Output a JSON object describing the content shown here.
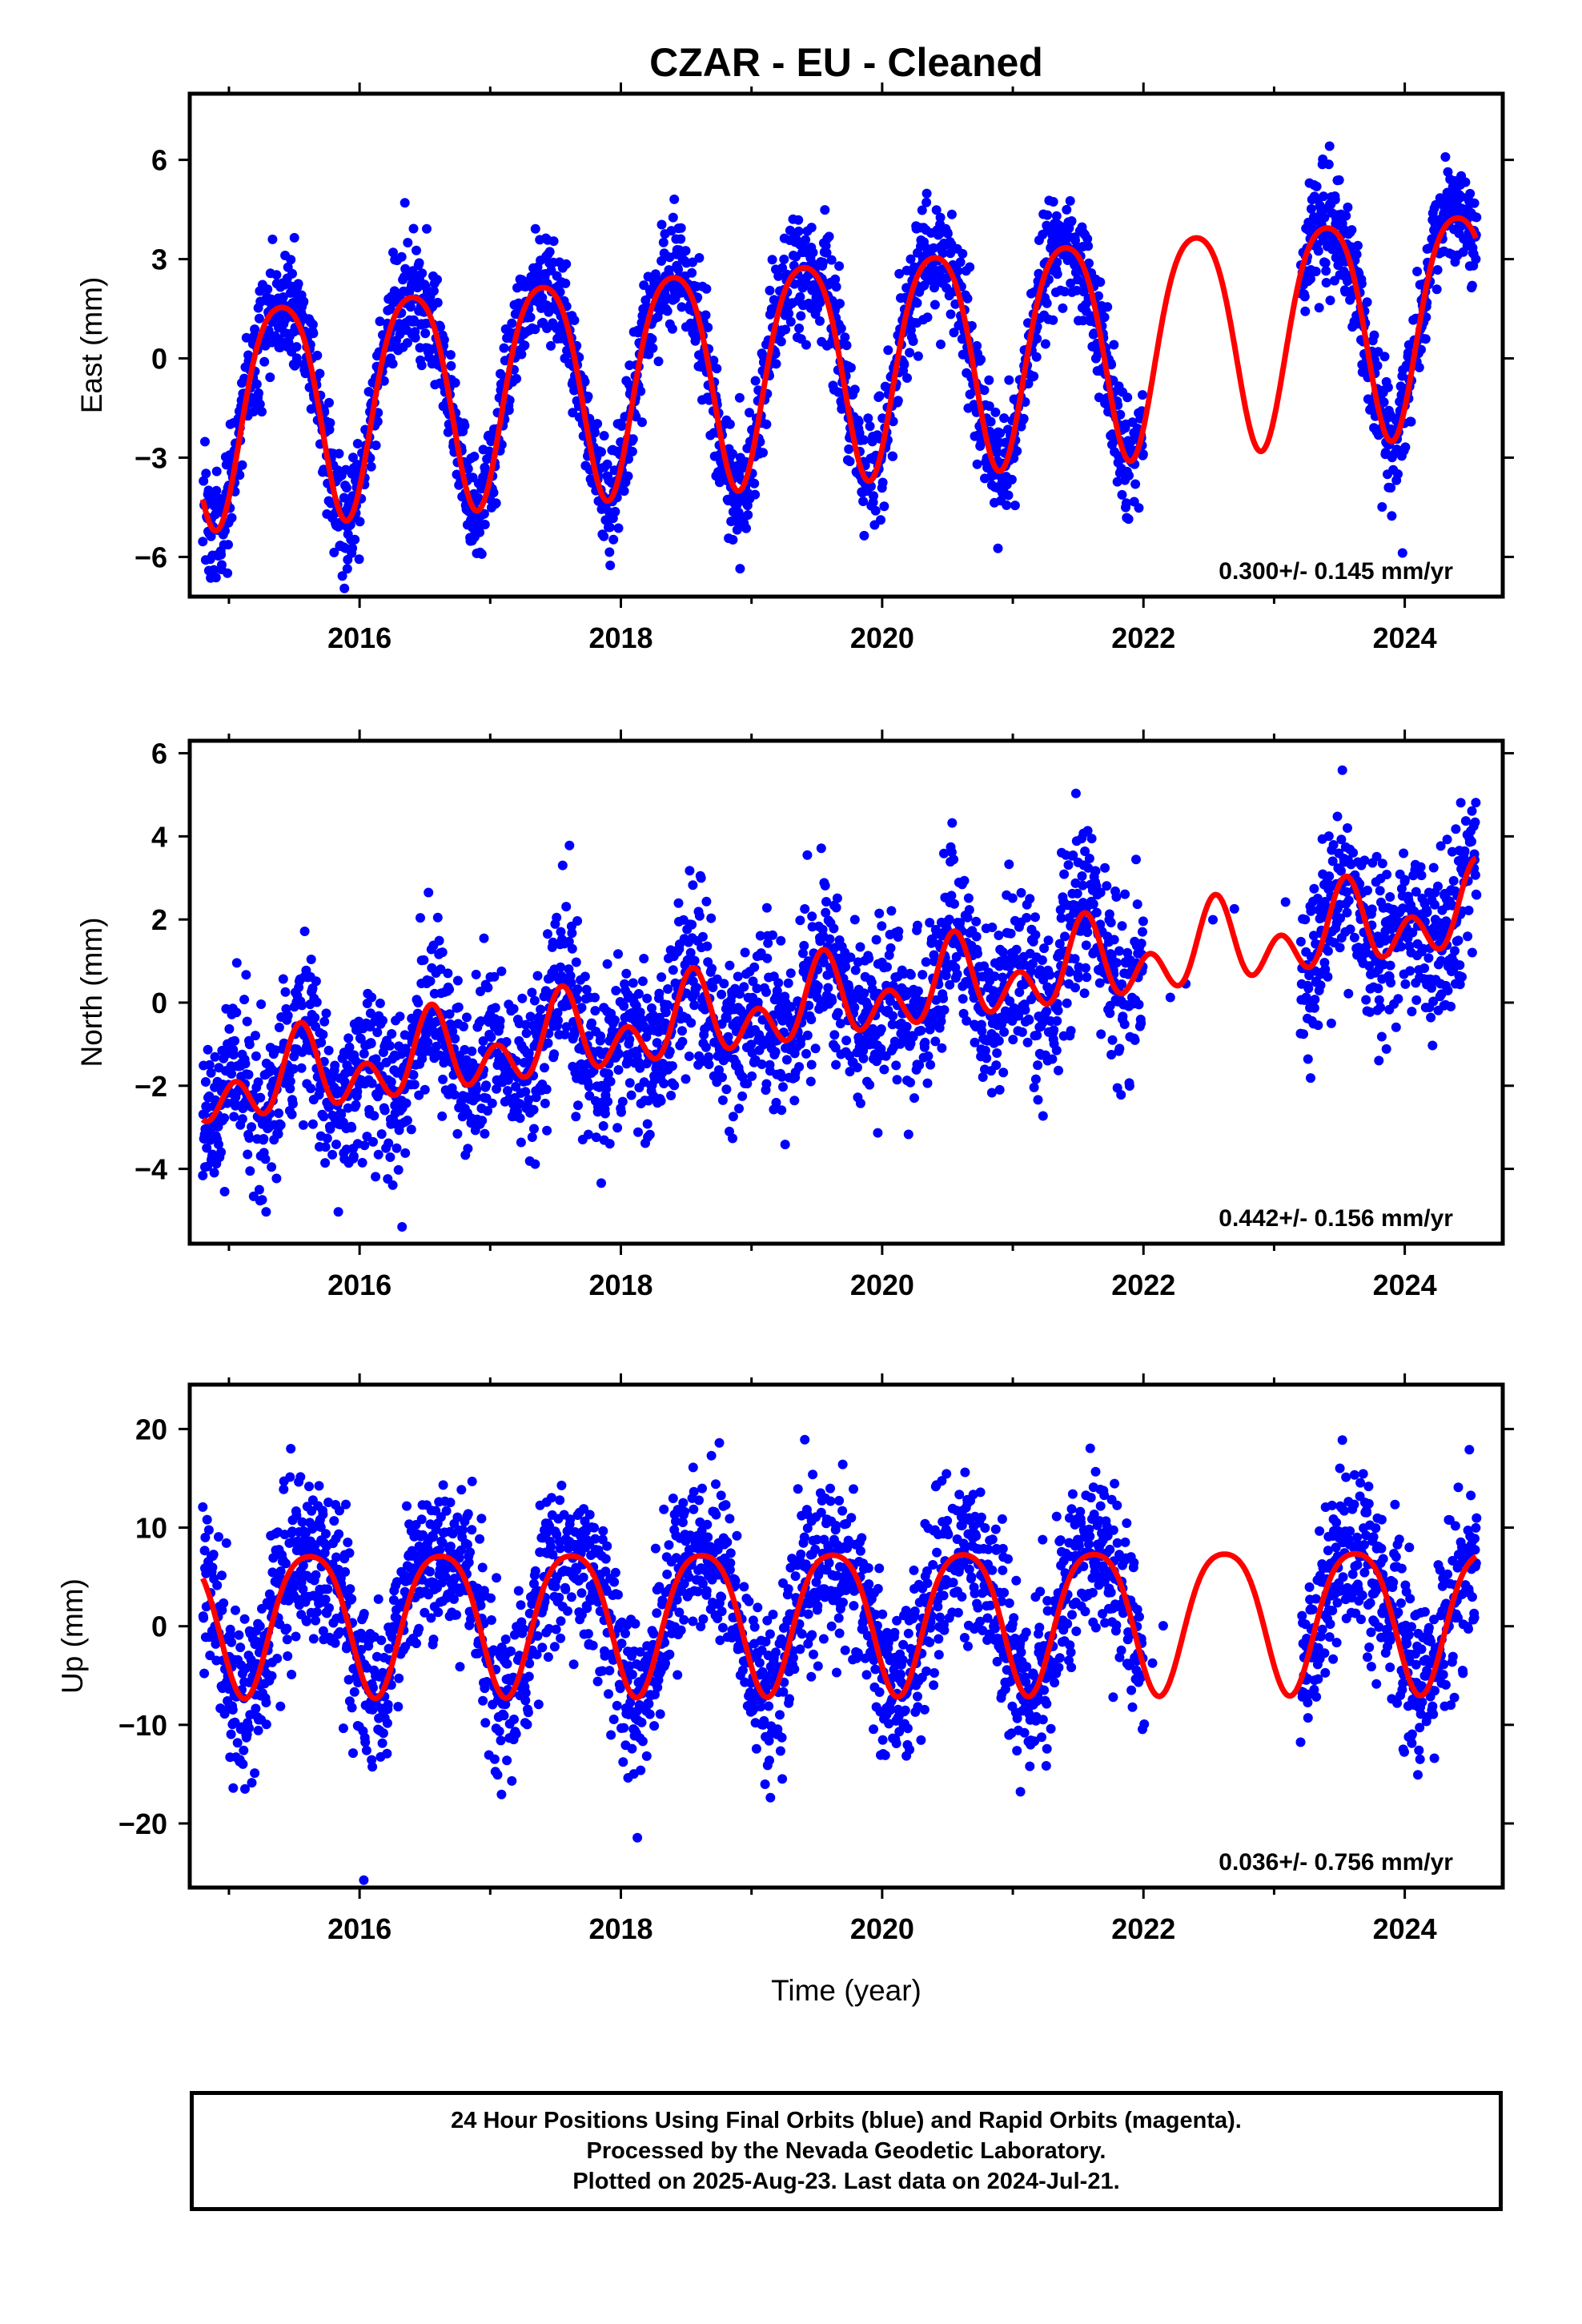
{
  "chart_data": {
    "type": "scatter",
    "title": "CZAR  - EU - Cleaned",
    "xlabel": "Time (year)",
    "x_range": [
      2014.7,
      2024.75
    ],
    "x_ticks": [
      2016,
      2018,
      2020,
      2022,
      2024
    ],
    "x_tick_labels": [
      "2016",
      "2018",
      "2020",
      "2022",
      "2024"
    ],
    "grid": false,
    "panels": [
      {
        "key": "east",
        "ylabel": "East (mm)",
        "ylim": [
          -7.2,
          8.0
        ],
        "y_ticks": [
          -6,
          -3,
          0,
          3,
          6
        ],
        "y_tick_labels": [
          "−6",
          "−3",
          "0",
          "3",
          "6"
        ],
        "rate_label": "0.300+/- 0.145 mm/yr",
        "series": [
          {
            "name": "Final Orbits",
            "color": "#0000ff",
            "kind": "scatter",
            "date_range": [
              2014.8,
              2024.55
            ],
            "gap": [
              2022.0,
              2023.2
            ],
            "model": {
              "offset": 0.0,
              "trend": 0.3,
              "t0": 2019.6,
              "annual_amp": 3.3,
              "annual_peak": 2019.4,
              "semiannual_amp": 0.5,
              "semiannual_peak": 2019.15
            },
            "noise_sd": 0.85
          },
          {
            "name": "Model Fit",
            "color": "#ff0000",
            "kind": "line",
            "date_range": [
              2014.8,
              2024.55
            ]
          }
        ]
      },
      {
        "key": "north",
        "ylabel": "North (mm)",
        "ylim": [
          -5.8,
          6.3
        ],
        "y_ticks": [
          -4,
          -2,
          0,
          2,
          4,
          6
        ],
        "y_tick_labels": [
          "−4",
          "−2",
          "0",
          "2",
          "4",
          "6"
        ],
        "rate_label": "0.442+/- 0.156 mm/yr",
        "series": [
          {
            "name": "Final Orbits",
            "color": "#0000ff",
            "kind": "scatter",
            "date_range": [
              2014.8,
              2024.55
            ],
            "gap": [
              2022.0,
              2023.2
            ],
            "model": {
              "offset": 0.0,
              "trend": 0.44,
              "t0": 2019.6,
              "annual_amp": 0.6,
              "annual_peak": 2019.55,
              "semiannual_amp": 0.7,
              "semiannual_peak": 2019.05
            },
            "noise_sd": 1.0
          },
          {
            "name": "Model Fit",
            "color": "#ff0000",
            "kind": "line",
            "date_range": [
              2014.8,
              2024.55
            ]
          }
        ]
      },
      {
        "key": "up",
        "ylabel": "Up (mm)",
        "ylim": [
          -26.5,
          24.5
        ],
        "y_ticks": [
          -20,
          -10,
          0,
          10,
          20
        ],
        "y_tick_labels": [
          "−20",
          "−10",
          "0",
          "10",
          "20"
        ],
        "rate_label": "0.036+/- 0.756 mm/yr",
        "series": [
          {
            "name": "Final Orbits",
            "color": "#0000ff",
            "kind": "scatter",
            "date_range": [
              2014.8,
              2024.55
            ],
            "gap": [
              2022.0,
              2023.2
            ],
            "model": {
              "offset": 1.2,
              "trend": 0.036,
              "t0": 2019.6,
              "annual_amp": 7.2,
              "annual_peak": 2019.62,
              "semiannual_amp": 1.2,
              "semiannual_peak": 2019.37
            },
            "noise_sd": 4.2
          },
          {
            "name": "Model Fit",
            "color": "#ff0000",
            "kind": "line",
            "date_range": [
              2014.8,
              2024.55
            ]
          }
        ]
      }
    ]
  },
  "footer": {
    "line1": "24 Hour Positions Using Final Orbits (blue) and Rapid Orbits (magenta).",
    "line2": "Processed by the Nevada Geodetic Laboratory.",
    "line3": "Plotted on 2025-Aug-23. Last data on 2024-Jul-21."
  }
}
